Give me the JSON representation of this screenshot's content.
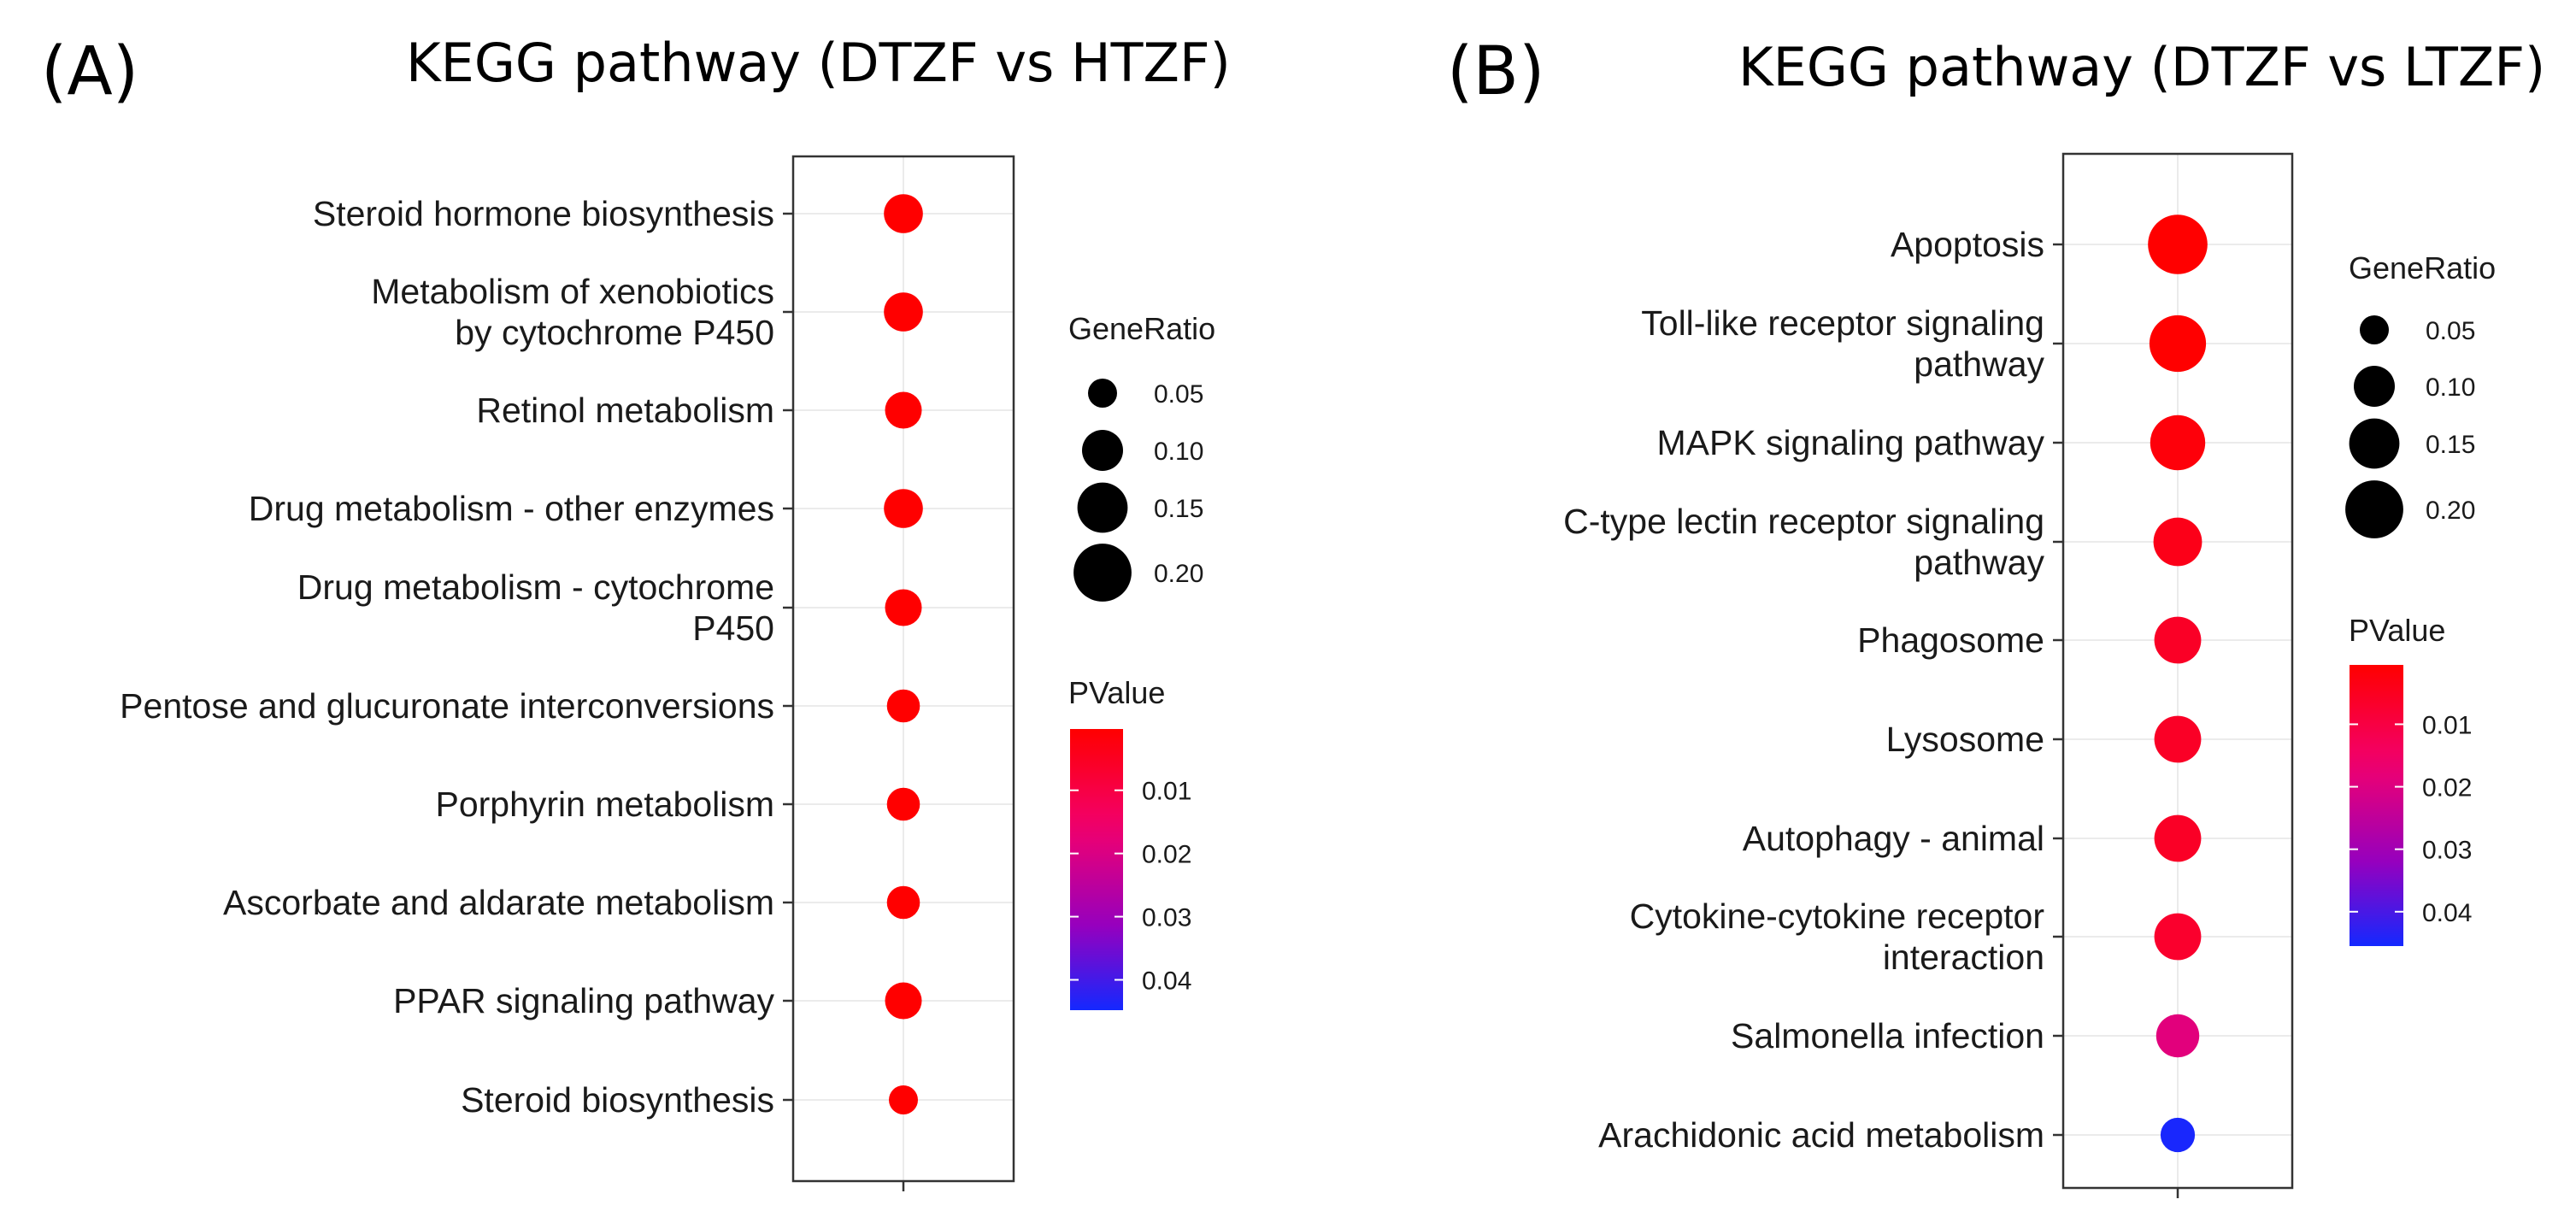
{
  "chart_data": [
    {
      "type": "scatter",
      "panel_label": "(A)",
      "title": "KEGG pathway (DTZF vs HTZF)",
      "categories": [
        "Steroid hormone biosynthesis",
        "Metabolism of xenobiotics\nby cytochrome P450",
        "Retinol metabolism",
        "Drug metabolism - other enzymes",
        "Drug metabolism - cytochrome\nP450",
        "Pentose and glucuronate interconversions",
        "Porphyrin metabolism",
        "Ascorbate and aldarate metabolism",
        "PPAR signaling pathway",
        "Steroid biosynthesis"
      ],
      "gene_ratio": [
        0.09,
        0.09,
        0.08,
        0.09,
        0.08,
        0.065,
        0.065,
        0.065,
        0.08,
        0.05
      ],
      "pvalue": [
        0.0003,
        0.0003,
        0.0003,
        0.0003,
        0.0003,
        0.0003,
        0.0003,
        0.0003,
        0.0003,
        0.0003
      ],
      "size_legend": {
        "title": "GeneRatio",
        "values": [
          0.05,
          0.1,
          0.15,
          0.2
        ],
        "labels": [
          "0.05",
          "0.10",
          "0.15",
          "0.20"
        ]
      },
      "color_legend": {
        "title": "PValue",
        "ticks": [
          0.01,
          0.02,
          0.03,
          0.04
        ],
        "labels": [
          "0.01",
          "0.02",
          "0.03",
          "0.04"
        ],
        "range": [
          0.0003,
          0.0448
        ]
      }
    },
    {
      "type": "scatter",
      "panel_label": "(B)",
      "title": "KEGG pathway (DTZF vs LTZF)",
      "categories": [
        "Apoptosis",
        "Toll-like receptor signaling\npathway",
        "MAPK signaling pathway",
        "C-type lectin receptor signaling\npathway",
        "Phagosome",
        "Lysosome",
        "Autophagy - animal",
        "Cytokine-cytokine receptor\ninteraction",
        "Salmonella infection",
        "Arachidonic acid metabolism"
      ],
      "gene_ratio": [
        0.21,
        0.19,
        0.18,
        0.14,
        0.13,
        0.13,
        0.13,
        0.13,
        0.11,
        0.07
      ],
      "pvalue": [
        0.0005,
        0.0005,
        0.002,
        0.004,
        0.006,
        0.006,
        0.006,
        0.007,
        0.019,
        0.045
      ],
      "size_legend": {
        "title": "GeneRatio",
        "values": [
          0.05,
          0.1,
          0.15,
          0.2
        ],
        "labels": [
          "0.05",
          "0.10",
          "0.15",
          "0.20"
        ]
      },
      "color_legend": {
        "title": "PValue",
        "ticks": [
          0.01,
          0.02,
          0.03,
          0.04
        ],
        "labels": [
          "0.01",
          "0.02",
          "0.03",
          "0.04"
        ],
        "range": [
          0.0005,
          0.0455
        ]
      }
    }
  ]
}
